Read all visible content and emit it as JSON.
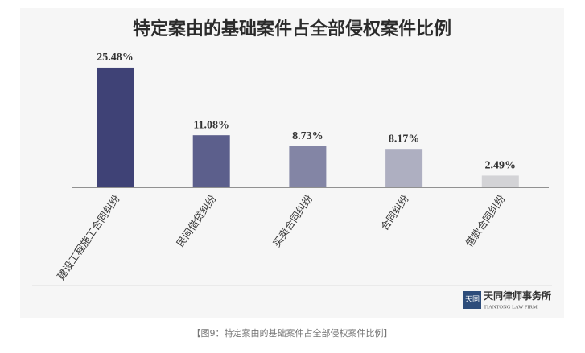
{
  "chart_data": {
    "type": "bar",
    "title": "特定案由的基础案件占全部侵权案件比例",
    "categories": [
      "建设工程施工合同纠纷",
      "民间借贷纠纷",
      "买卖合同纠纷",
      "合同纠纷",
      "借款合同纠纷"
    ],
    "values": [
      25.48,
      11.08,
      8.73,
      8.17,
      2.49
    ],
    "value_labels": [
      "25.48%",
      "11.08%",
      "8.73%",
      "8.17%",
      "2.49%"
    ],
    "colors": [
      "#3f4276",
      "#5c5f8c",
      "#8385a5",
      "#aeafc1",
      "#d3d3d6"
    ]
  },
  "logo": {
    "name": "天同律师事务所",
    "subtitle": "TIANTONG LAW FIRM"
  },
  "caption": "【图9：特定案由的基础案件占全部侵权案件比例】"
}
